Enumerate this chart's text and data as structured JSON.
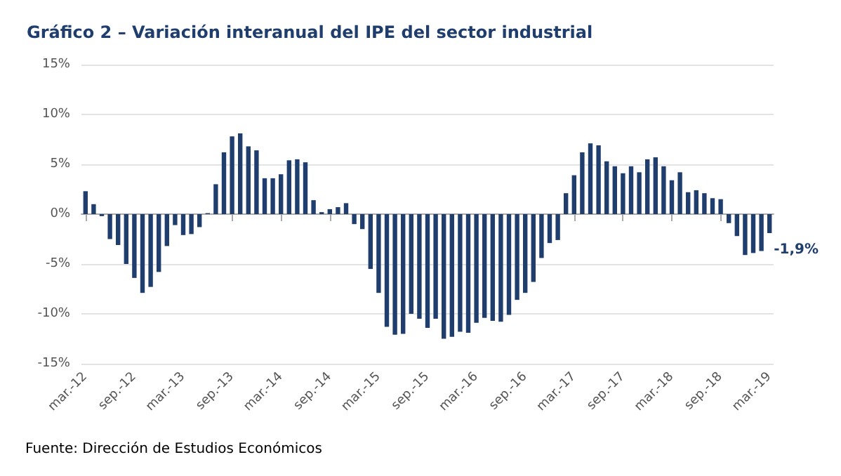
{
  "chart_data": {
    "type": "bar",
    "title": "Gráfico 2 – Variación interanual del IPE del sector industrial",
    "categories": [
      "mar.-12",
      null,
      null,
      null,
      null,
      null,
      "sep.-12",
      null,
      null,
      null,
      null,
      null,
      "mar.-13",
      null,
      null,
      null,
      null,
      null,
      "sep.-13",
      null,
      null,
      null,
      null,
      null,
      "mar.-14",
      null,
      null,
      null,
      null,
      null,
      "sep.-14",
      null,
      null,
      null,
      null,
      null,
      "mar.-15",
      null,
      null,
      null,
      null,
      null,
      "sep.-15",
      null,
      null,
      null,
      null,
      null,
      "mar.-16",
      null,
      null,
      null,
      null,
      null,
      "sep.-16",
      null,
      null,
      null,
      null,
      null,
      "mar.-17",
      null,
      null,
      null,
      null,
      null,
      "sep.-17",
      null,
      null,
      null,
      null,
      null,
      "mar.-18",
      null,
      null,
      null,
      null,
      null,
      "sep.-18",
      null,
      null,
      null,
      null,
      null,
      "mar.-19"
    ],
    "values": [
      2.3,
      1.0,
      -0.2,
      -2.5,
      -3.1,
      -5.0,
      -6.4,
      -7.9,
      -7.3,
      -5.8,
      -3.2,
      -1.1,
      -2.1,
      -2.0,
      -1.3,
      0.1,
      3.0,
      6.2,
      7.8,
      8.1,
      6.8,
      6.4,
      3.6,
      3.6,
      4.0,
      5.4,
      5.5,
      5.2,
      1.4,
      0.2,
      0.5,
      0.7,
      1.1,
      -1.0,
      -1.5,
      -5.5,
      -7.9,
      -11.3,
      -12.1,
      -12.0,
      -10.0,
      -10.5,
      -11.4,
      -10.5,
      -12.5,
      -12.3,
      -11.8,
      -11.9,
      -10.9,
      -10.4,
      -10.7,
      -10.8,
      -10.1,
      -8.6,
      -7.9,
      -6.8,
      -4.4,
      -2.9,
      -2.6,
      2.1,
      3.9,
      6.2,
      7.1,
      6.9,
      5.3,
      4.8,
      4.1,
      4.8,
      4.2,
      5.5,
      5.7,
      4.8,
      3.4,
      4.2,
      2.2,
      2.4,
      2.1,
      1.6,
      1.5,
      -0.9,
      -2.2,
      -4.1,
      -3.9,
      -3.7,
      -1.9
    ],
    "color": "#1f3e6e",
    "ylim": [
      -15,
      15
    ],
    "yticks": [
      {
        "value": -15,
        "label": "-15%"
      },
      {
        "value": -10,
        "label": "-10%"
      },
      {
        "value": -5,
        "label": "-5%"
      },
      {
        "value": 0,
        "label": "0%"
      },
      {
        "value": 5,
        "label": "5%"
      },
      {
        "value": 10,
        "label": "10%"
      },
      {
        "value": 15,
        "label": "15%"
      }
    ],
    "grid": "y",
    "annotations": [
      {
        "text": "-1,9%",
        "x": "mar.-19",
        "y": -1.9
      },
      "Fuente: Dirección de Estudios Económicos"
    ]
  }
}
